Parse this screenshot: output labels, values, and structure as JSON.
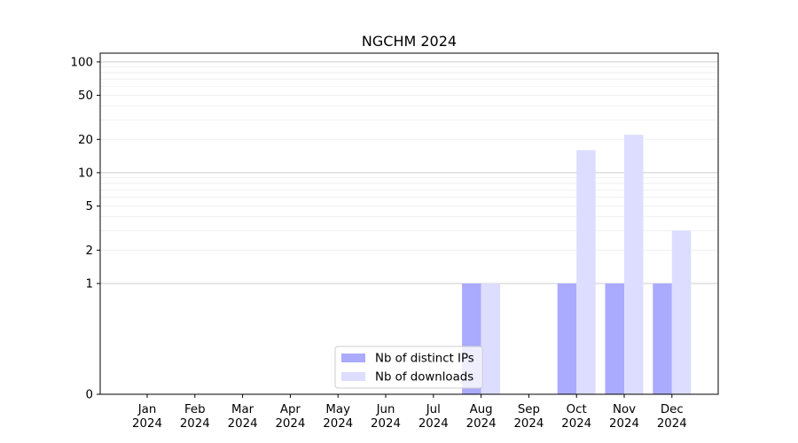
{
  "chart_data": {
    "type": "bar",
    "title": "NGCHM 2024",
    "xlabel": "",
    "ylabel": "",
    "categories": [
      [
        "Jan",
        "2024"
      ],
      [
        "Feb",
        "2024"
      ],
      [
        "Mar",
        "2024"
      ],
      [
        "Apr",
        "2024"
      ],
      [
        "May",
        "2024"
      ],
      [
        "Jun",
        "2024"
      ],
      [
        "Jul",
        "2024"
      ],
      [
        "Aug",
        "2024"
      ],
      [
        "Sep",
        "2024"
      ],
      [
        "Oct",
        "2024"
      ],
      [
        "Nov",
        "2024"
      ],
      [
        "Dec",
        "2024"
      ]
    ],
    "series": [
      {
        "name": "Nb of distinct IPs",
        "color": "#aaaaff",
        "values": [
          0,
          0,
          0,
          0,
          0,
          0,
          0,
          1,
          0,
          1,
          1,
          1
        ]
      },
      {
        "name": "Nb of downloads",
        "color": "#ddddff",
        "values": [
          0,
          0,
          0,
          0,
          0,
          0,
          0,
          1,
          0,
          16,
          22,
          3
        ]
      }
    ],
    "y_scale": "symlog",
    "ylim": [
      0,
      120
    ],
    "y_ticks": [
      0,
      1,
      2,
      5,
      10,
      20,
      50,
      100
    ],
    "grid": true,
    "legend_position": "lower center"
  }
}
